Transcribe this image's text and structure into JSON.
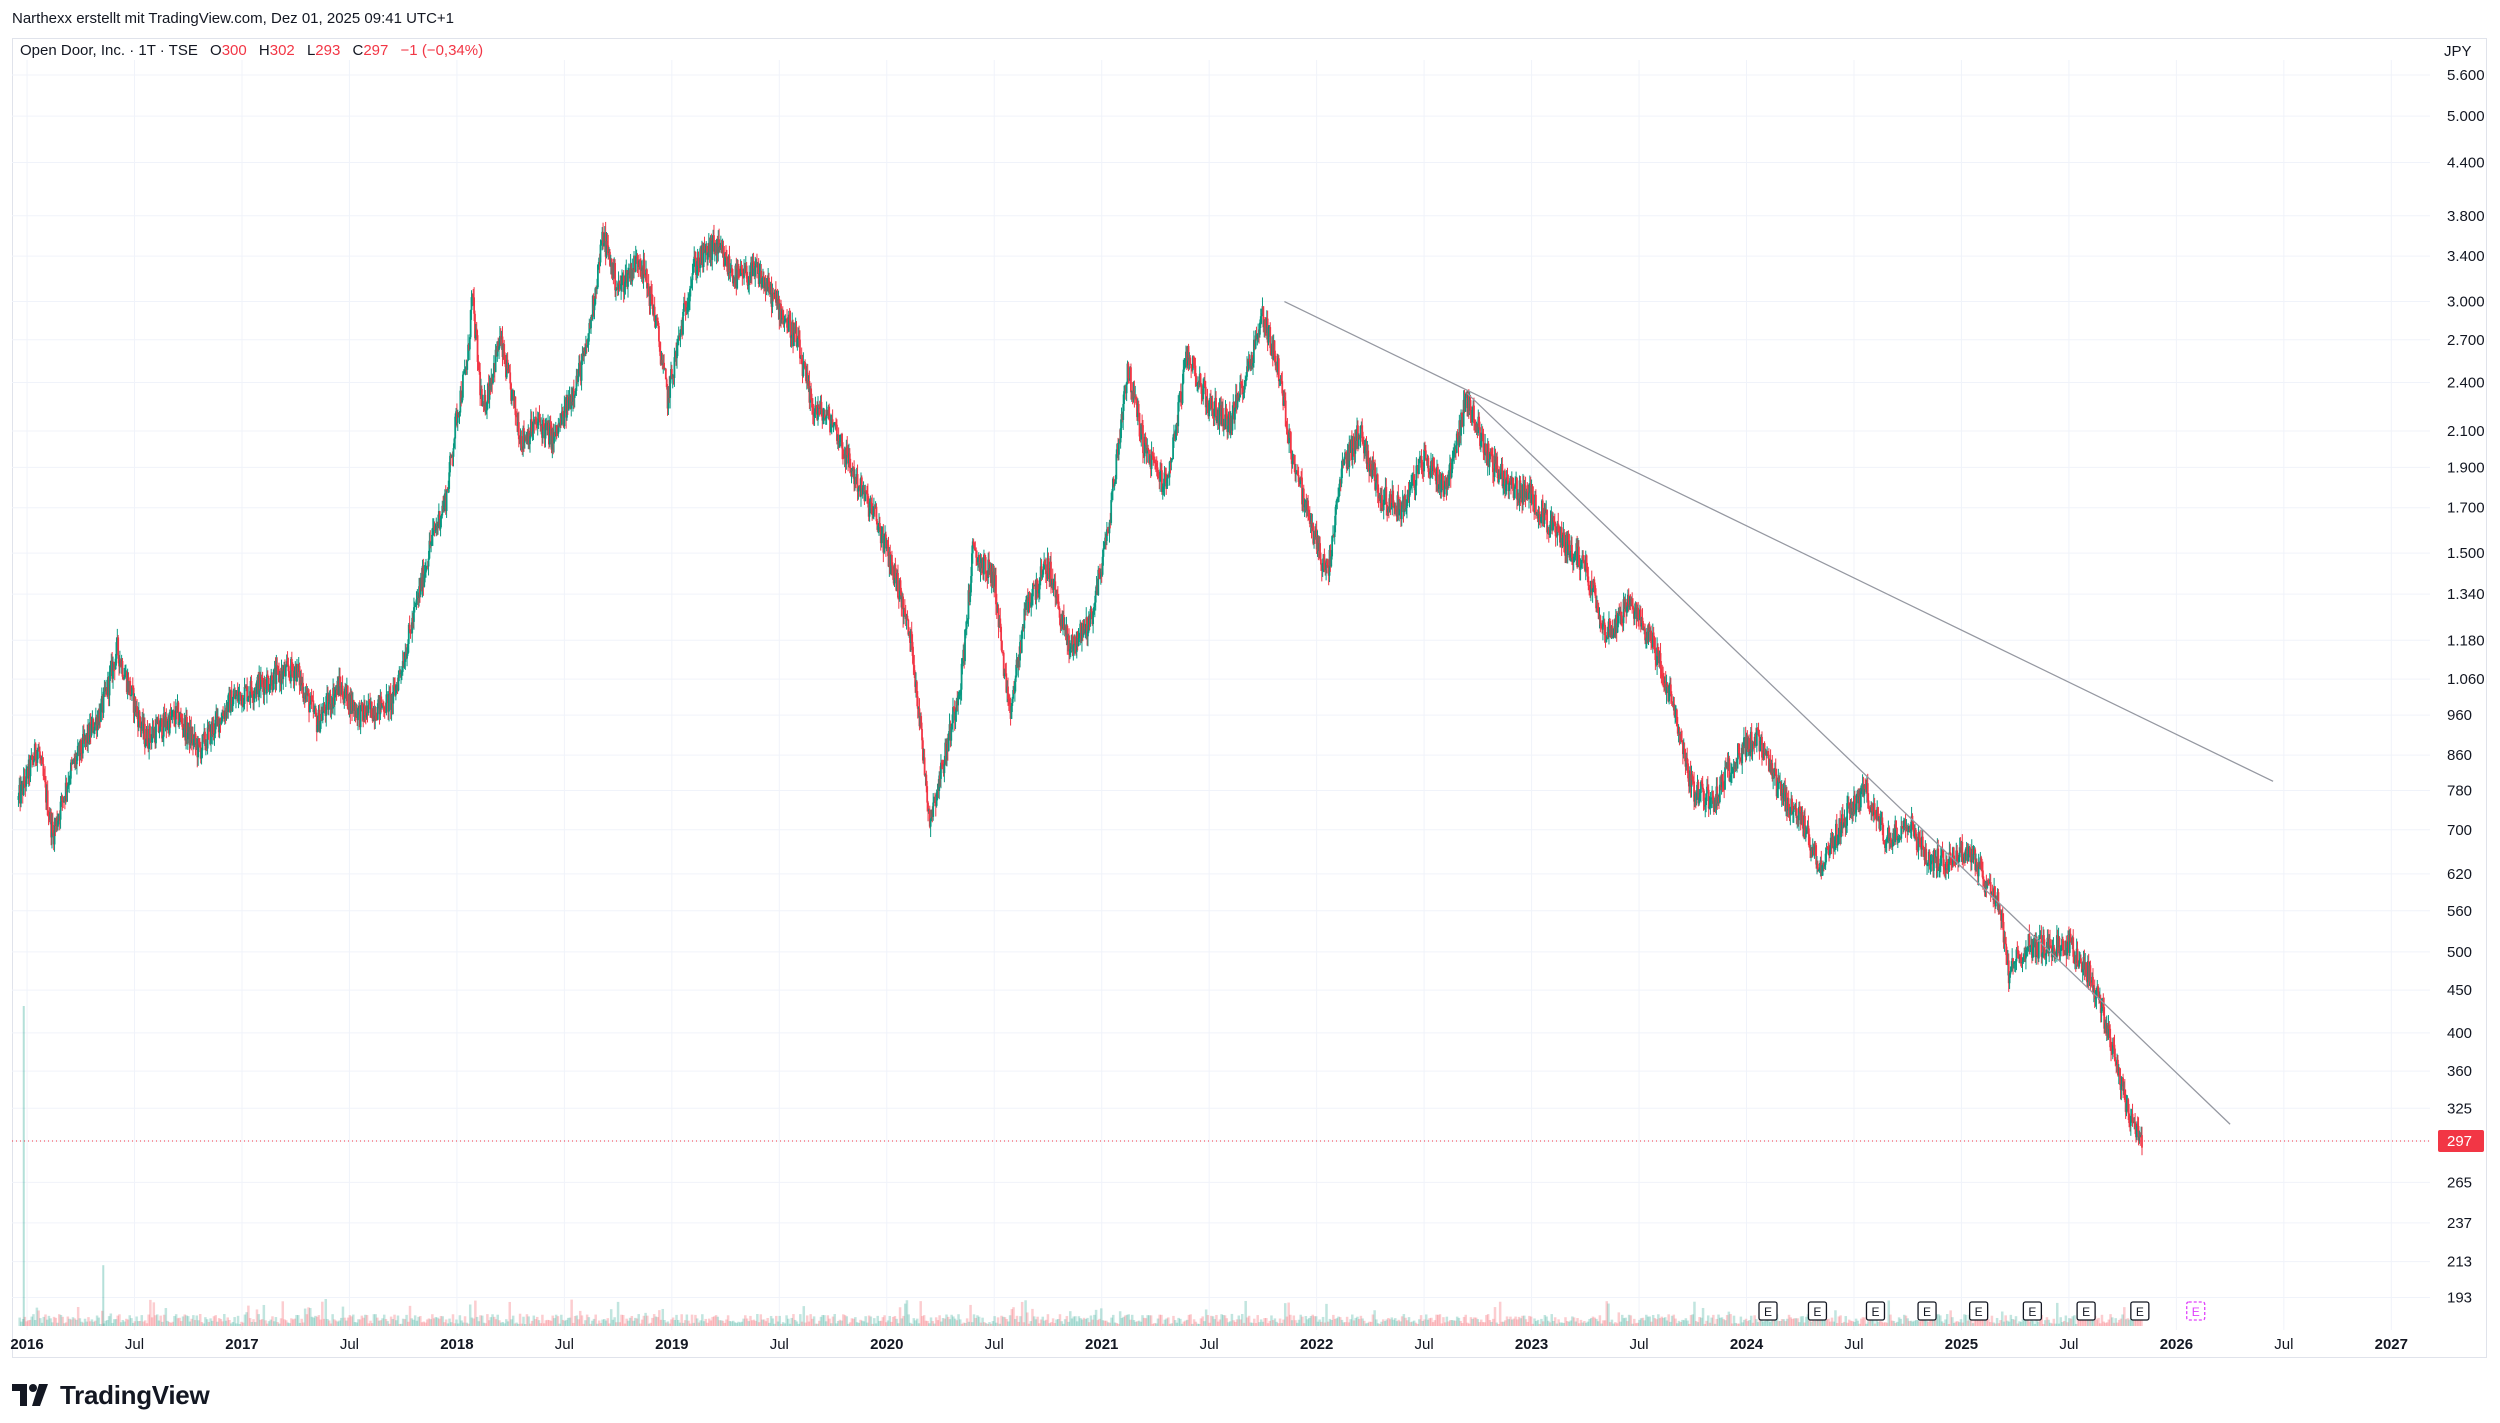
{
  "caption": "Narthexx erstellt mit TradingView.com, Dez 01, 2025 09:41 UTC+1",
  "legend": {
    "symbol": "Open Door, Inc. · 1T · TSE",
    "open_label": "O",
    "open": "300",
    "high_label": "H",
    "high": "302",
    "low_label": "L",
    "low": "293",
    "close_label": "C",
    "close": "297",
    "change": "−1 (−0,34%)"
  },
  "currency": "JPY",
  "brand": "TradingView",
  "colors": {
    "up": "#089981",
    "down": "#f23645",
    "trendline": "#9598a1",
    "price_line": "#f23645",
    "earnings_future": "#e040fb"
  },
  "chart_data": {
    "type": "candlestick",
    "scale": "log",
    "last_price": 297,
    "last_price_label": "297",
    "ylim": [
      180,
      6000
    ],
    "y_ticks": [
      193,
      213,
      237,
      265,
      297,
      325,
      360,
      400,
      450,
      500,
      560,
      620,
      700,
      780,
      860,
      960,
      1060,
      1180,
      1340,
      1500,
      1700,
      1900,
      2100,
      2400,
      2700,
      3000,
      3400,
      3800,
      4400,
      5000,
      5600
    ],
    "y_tick_labels": [
      "193",
      "213",
      "237",
      "265",
      "",
      "325",
      "360",
      "400",
      "450",
      "500",
      "560",
      "620",
      "700",
      "780",
      "860",
      "960",
      "1.060",
      "1.180",
      "1.340",
      "1.500",
      "1.700",
      "1.900",
      "2.100",
      "2.400",
      "2.700",
      "3.000",
      "3.400",
      "3.800",
      "4.400",
      "5.000",
      "5.600"
    ],
    "x_ticks": [
      {
        "t": 2016.0,
        "label": "2016",
        "major": true
      },
      {
        "t": 2016.5,
        "label": "Jul",
        "major": false
      },
      {
        "t": 2017.0,
        "label": "2017",
        "major": true
      },
      {
        "t": 2017.5,
        "label": "Jul",
        "major": false
      },
      {
        "t": 2018.0,
        "label": "2018",
        "major": true
      },
      {
        "t": 2018.5,
        "label": "Jul",
        "major": false
      },
      {
        "t": 2019.0,
        "label": "2019",
        "major": true
      },
      {
        "t": 2019.5,
        "label": "Jul",
        "major": false
      },
      {
        "t": 2020.0,
        "label": "2020",
        "major": true
      },
      {
        "t": 2020.5,
        "label": "Jul",
        "major": false
      },
      {
        "t": 2021.0,
        "label": "2021",
        "major": true
      },
      {
        "t": 2021.5,
        "label": "Jul",
        "major": false
      },
      {
        "t": 2022.0,
        "label": "2022",
        "major": true
      },
      {
        "t": 2022.5,
        "label": "Jul",
        "major": false
      },
      {
        "t": 2023.0,
        "label": "2023",
        "major": true
      },
      {
        "t": 2023.5,
        "label": "Jul",
        "major": false
      },
      {
        "t": 2024.0,
        "label": "2024",
        "major": true
      },
      {
        "t": 2024.5,
        "label": "Jul",
        "major": false
      },
      {
        "t": 2025.0,
        "label": "2025",
        "major": true
      },
      {
        "t": 2025.5,
        "label": "Jul",
        "major": false
      },
      {
        "t": 2026.0,
        "label": "2026",
        "major": true
      },
      {
        "t": 2026.5,
        "label": "Jul",
        "major": false
      },
      {
        "t": 2027.0,
        "label": "2027",
        "major": true
      }
    ],
    "price_path": [
      [
        2015.96,
        760
      ],
      [
        2016.05,
        880
      ],
      [
        2016.12,
        690
      ],
      [
        2016.2,
        820
      ],
      [
        2016.35,
        980
      ],
      [
        2016.42,
        1150
      ],
      [
        2016.55,
        900
      ],
      [
        2016.7,
        960
      ],
      [
        2016.8,
        870
      ],
      [
        2016.95,
        1000
      ],
      [
        2017.1,
        1050
      ],
      [
        2017.25,
        1090
      ],
      [
        2017.35,
        940
      ],
      [
        2017.45,
        1040
      ],
      [
        2017.55,
        960
      ],
      [
        2017.7,
        1000
      ],
      [
        2017.78,
        1200
      ],
      [
        2017.88,
        1550
      ],
      [
        2017.95,
        1750
      ],
      [
        2018.0,
        2200
      ],
      [
        2018.05,
        2550
      ],
      [
        2018.07,
        3050
      ],
      [
        2018.12,
        2200
      ],
      [
        2018.2,
        2700
      ],
      [
        2018.3,
        2050
      ],
      [
        2018.38,
        2150
      ],
      [
        2018.45,
        2050
      ],
      [
        2018.5,
        2200
      ],
      [
        2018.6,
        2600
      ],
      [
        2018.68,
        3600
      ],
      [
        2018.75,
        3100
      ],
      [
        2018.85,
        3400
      ],
      [
        2018.92,
        2900
      ],
      [
        2018.98,
        2300
      ],
      [
        2019.1,
        3300
      ],
      [
        2019.2,
        3500
      ],
      [
        2019.3,
        3200
      ],
      [
        2019.4,
        3250
      ],
      [
        2019.5,
        2950
      ],
      [
        2019.58,
        2700
      ],
      [
        2019.65,
        2250
      ],
      [
        2019.75,
        2150
      ],
      [
        2019.85,
        1850
      ],
      [
        2019.95,
        1650
      ],
      [
        2020.05,
        1380
      ],
      [
        2020.12,
        1150
      ],
      [
        2020.2,
        720
      ],
      [
        2020.28,
        880
      ],
      [
        2020.35,
        1080
      ],
      [
        2020.4,
        1500
      ],
      [
        2020.5,
        1400
      ],
      [
        2020.57,
        950
      ],
      [
        2020.65,
        1300
      ],
      [
        2020.75,
        1450
      ],
      [
        2020.85,
        1150
      ],
      [
        2020.95,
        1250
      ],
      [
        2021.03,
        1600
      ],
      [
        2021.12,
        2500
      ],
      [
        2021.2,
        2000
      ],
      [
        2021.3,
        1800
      ],
      [
        2021.4,
        2600
      ],
      [
        2021.5,
        2250
      ],
      [
        2021.6,
        2150
      ],
      [
        2021.7,
        2600
      ],
      [
        2021.75,
        2900
      ],
      [
        2021.82,
        2500
      ],
      [
        2021.88,
        2000
      ],
      [
        2021.95,
        1700
      ],
      [
        2022.05,
        1400
      ],
      [
        2022.12,
        1900
      ],
      [
        2022.2,
        2100
      ],
      [
        2022.3,
        1750
      ],
      [
        2022.4,
        1700
      ],
      [
        2022.5,
        1950
      ],
      [
        2022.6,
        1800
      ],
      [
        2022.7,
        2300
      ],
      [
        2022.8,
        1950
      ],
      [
        2022.9,
        1800
      ],
      [
        2023.0,
        1750
      ],
      [
        2023.1,
        1600
      ],
      [
        2023.25,
        1450
      ],
      [
        2023.35,
        1200
      ],
      [
        2023.45,
        1300
      ],
      [
        2023.55,
        1200
      ],
      [
        2023.65,
        1000
      ],
      [
        2023.75,
        780
      ],
      [
        2023.85,
        760
      ],
      [
        2023.95,
        860
      ],
      [
        2024.05,
        900
      ],
      [
        2024.15,
        780
      ],
      [
        2024.25,
        720
      ],
      [
        2024.35,
        630
      ],
      [
        2024.45,
        720
      ],
      [
        2024.55,
        780
      ],
      [
        2024.65,
        680
      ],
      [
        2024.75,
        720
      ],
      [
        2024.85,
        640
      ],
      [
        2024.95,
        650
      ],
      [
        2025.05,
        660
      ],
      [
        2025.12,
        600
      ],
      [
        2025.17,
        580
      ],
      [
        2025.22,
        470
      ],
      [
        2025.3,
        510
      ],
      [
        2025.4,
        505
      ],
      [
        2025.5,
        510
      ],
      [
        2025.6,
        470
      ],
      [
        2025.66,
        420
      ],
      [
        2025.72,
        370
      ],
      [
        2025.78,
        320
      ],
      [
        2025.84,
        297
      ]
    ],
    "trendlines": [
      {
        "t1": 2021.85,
        "p1": 3000,
        "t2": 2026.45,
        "p2": 800
      },
      {
        "t1": 2022.7,
        "p1": 2330,
        "t2": 2026.25,
        "p2": 311
      }
    ],
    "volume_spikes": [
      {
        "t": 2015.98,
        "v": 1.0
      },
      {
        "t": 2016.35,
        "v": 0.19
      }
    ],
    "earnings": [
      {
        "t": 2024.1,
        "label": "E"
      },
      {
        "t": 2024.33,
        "label": "E"
      },
      {
        "t": 2024.6,
        "label": "E"
      },
      {
        "t": 2024.84,
        "label": "E"
      },
      {
        "t": 2025.08,
        "label": "E"
      },
      {
        "t": 2025.33,
        "label": "E"
      },
      {
        "t": 2025.58,
        "label": "E"
      },
      {
        "t": 2025.83,
        "label": "E"
      },
      {
        "t": 2026.09,
        "label": "E",
        "future": true
      }
    ]
  }
}
